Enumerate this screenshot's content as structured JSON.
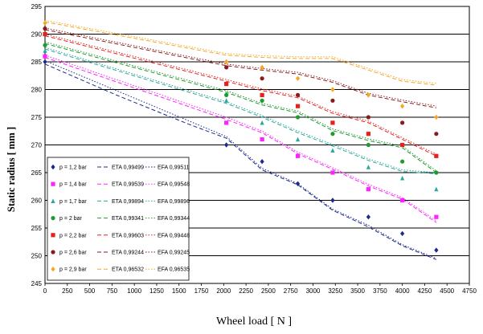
{
  "chart_data": {
    "type": "scatter",
    "xlabel": "Wheel load [ N ]",
    "ylabel": "Static radius [ mm ]",
    "xlim": [
      0,
      4750
    ],
    "ylim": [
      245,
      295
    ],
    "x_ticks": [
      0,
      250,
      500,
      750,
      1000,
      1250,
      1500,
      1750,
      2000,
      2250,
      2500,
      2750,
      3000,
      3250,
      3500,
      3750,
      4000,
      4250,
      4500,
      4750
    ],
    "y_ticks": [
      245,
      250,
      255,
      260,
      265,
      270,
      275,
      280,
      285,
      290,
      295
    ],
    "grid": "horizontal",
    "legend_position": "bottom-left",
    "series": [
      {
        "name": "p = 1,2 bar",
        "color": "#1c2a8c",
        "marker": "diamond",
        "points": [
          [
            0,
            285
          ],
          [
            2030,
            270
          ],
          [
            2430,
            267
          ],
          [
            2830,
            263
          ],
          [
            3220,
            260
          ],
          [
            3620,
            257
          ],
          [
            4000,
            254
          ],
          [
            4380,
            251
          ]
        ],
        "eta_label": "ETA 0,99499",
        "eta_curve": [
          [
            0,
            284.6
          ],
          [
            800,
            279
          ],
          [
            1600,
            273.8
          ],
          [
            2030,
            271.2
          ],
          [
            2430,
            265.5
          ],
          [
            2830,
            262.8
          ],
          [
            3220,
            258.2
          ],
          [
            3620,
            255.2
          ],
          [
            4000,
            251.8
          ],
          [
            4380,
            249.3
          ]
        ],
        "efa_label": "EFA 0,99511",
        "efa_curve": [
          [
            0,
            285.2
          ],
          [
            2030,
            271.5
          ],
          [
            2430,
            265.8
          ],
          [
            2830,
            263
          ],
          [
            3220,
            258.4
          ],
          [
            3620,
            255.5
          ],
          [
            4000,
            252
          ],
          [
            4380,
            249.5
          ]
        ]
      },
      {
        "name": "p = 1,4 bar",
        "color": "#ff22ff",
        "marker": "square",
        "points": [
          [
            0,
            286
          ],
          [
            2030,
            274
          ],
          [
            2430,
            271
          ],
          [
            2830,
            268
          ],
          [
            3220,
            265
          ],
          [
            3620,
            262
          ],
          [
            4000,
            260
          ],
          [
            4380,
            257
          ]
        ],
        "eta_label": "ETA 0,99539",
        "eta_curve": [
          [
            0,
            285.8
          ],
          [
            2030,
            274.6
          ],
          [
            2430,
            272.2
          ],
          [
            2830,
            268.4
          ],
          [
            3220,
            265.6
          ],
          [
            3620,
            262.6
          ],
          [
            4000,
            260.2
          ],
          [
            4380,
            256
          ]
        ],
        "efa_label": "EFA 0,99548",
        "efa_curve": [
          [
            0,
            286.2
          ],
          [
            2030,
            275
          ],
          [
            2430,
            272.5
          ],
          [
            2830,
            268.7
          ],
          [
            3220,
            265.9
          ],
          [
            3620,
            262.9
          ],
          [
            4000,
            260.5
          ],
          [
            4380,
            256.3
          ]
        ]
      },
      {
        "name": "p = 1,7 bar",
        "color": "#2aa89c",
        "marker": "triangle",
        "points": [
          [
            0,
            287
          ],
          [
            2030,
            278
          ],
          [
            2430,
            274
          ],
          [
            2830,
            271
          ],
          [
            3220,
            269
          ],
          [
            3620,
            266
          ],
          [
            4000,
            264
          ],
          [
            4380,
            262
          ]
        ],
        "eta_label": "ETA 0,99894",
        "eta_curve": [
          [
            0,
            287.3
          ],
          [
            2030,
            277.5
          ],
          [
            2430,
            275
          ],
          [
            2830,
            272.2
          ],
          [
            3220,
            269.8
          ],
          [
            3620,
            267.2
          ],
          [
            4000,
            265.2
          ],
          [
            4380,
            264.8
          ]
        ],
        "efa_label": "EFA 0,99896",
        "efa_curve": [
          [
            0,
            287.6
          ],
          [
            2030,
            277.8
          ],
          [
            2430,
            275.3
          ],
          [
            2830,
            272.5
          ],
          [
            3220,
            270.1
          ],
          [
            3620,
            267.5
          ],
          [
            4000,
            265.5
          ],
          [
            4380,
            265
          ]
        ]
      },
      {
        "name": "p = 2 bar",
        "color": "#1e9b2e",
        "marker": "circle",
        "points": [
          [
            0,
            288
          ],
          [
            2030,
            279
          ],
          [
            2430,
            278
          ],
          [
            2830,
            275
          ],
          [
            3220,
            272
          ],
          [
            3620,
            270
          ],
          [
            4000,
            267
          ],
          [
            4380,
            265
          ]
        ],
        "eta_label": "ETA 0,99341",
        "eta_curve": [
          [
            0,
            288.3
          ],
          [
            2030,
            279.5
          ],
          [
            2430,
            277.2
          ],
          [
            2830,
            275.8
          ],
          [
            3220,
            272.6
          ],
          [
            3620,
            270.8
          ],
          [
            4000,
            269.5
          ],
          [
            4380,
            265
          ]
        ],
        "efa_label": "EFA 0,99344",
        "efa_curve": [
          [
            0,
            288.6
          ],
          [
            2030,
            279.8
          ],
          [
            2430,
            277.5
          ],
          [
            2830,
            276.1
          ],
          [
            3220,
            272.9
          ],
          [
            3620,
            271.1
          ],
          [
            4000,
            269.8
          ],
          [
            4380,
            265.3
          ]
        ]
      },
      {
        "name": "p = 2,2 bar",
        "color": "#e8201c",
        "marker": "square",
        "points": [
          [
            0,
            290
          ],
          [
            2030,
            281
          ],
          [
            2430,
            279
          ],
          [
            2830,
            277
          ],
          [
            3220,
            274
          ],
          [
            3620,
            272
          ],
          [
            4000,
            270
          ],
          [
            4380,
            268
          ]
        ],
        "eta_label": "ETA 0,99603",
        "eta_curve": [
          [
            0,
            289.7
          ],
          [
            2030,
            281.5
          ],
          [
            2430,
            279.8
          ],
          [
            2830,
            278.5
          ],
          [
            3220,
            275.7
          ],
          [
            3620,
            274
          ],
          [
            4000,
            271
          ],
          [
            4380,
            268
          ]
        ],
        "efa_label": "EFA 0,99448",
        "efa_curve": [
          [
            0,
            290
          ],
          [
            2030,
            281.8
          ],
          [
            2430,
            280.1
          ],
          [
            2830,
            278.8
          ],
          [
            3220,
            276
          ],
          [
            3620,
            274.3
          ],
          [
            4000,
            271.3
          ],
          [
            4380,
            268.3
          ]
        ]
      },
      {
        "name": "p = 2,6 bar",
        "color": "#8b1a1a",
        "marker": "circle",
        "points": [
          [
            0,
            291
          ],
          [
            2030,
            284
          ],
          [
            2430,
            282
          ],
          [
            2830,
            279
          ],
          [
            3220,
            278
          ],
          [
            3620,
            275
          ],
          [
            4000,
            274
          ],
          [
            4380,
            272
          ]
        ],
        "eta_label": "ETA 0,99244",
        "eta_curve": [
          [
            0,
            290.8
          ],
          [
            2030,
            284.3
          ],
          [
            2430,
            283.5
          ],
          [
            2830,
            282.8
          ],
          [
            3220,
            281.3
          ],
          [
            3620,
            279
          ],
          [
            4000,
            277.8
          ],
          [
            4380,
            276.7
          ]
        ],
        "efa_label": "EFA 0,99245",
        "efa_curve": [
          [
            0,
            291.1
          ],
          [
            2030,
            284.6
          ],
          [
            2430,
            283.8
          ],
          [
            2830,
            283.1
          ],
          [
            3220,
            281.6
          ],
          [
            3620,
            279.3
          ],
          [
            4000,
            278.1
          ],
          [
            4380,
            277
          ]
        ]
      },
      {
        "name": "p = 2,9 bar",
        "color": "#f5a623",
        "marker": "diamond",
        "points": [
          [
            0,
            292
          ],
          [
            2030,
            285
          ],
          [
            2430,
            284
          ],
          [
            2830,
            282
          ],
          [
            3220,
            280
          ],
          [
            3620,
            279
          ],
          [
            4000,
            277
          ],
          [
            4380,
            275
          ]
        ],
        "eta_label": "ETA 0,96532",
        "eta_curve": [
          [
            0,
            292.2
          ],
          [
            2030,
            286.2
          ],
          [
            2430,
            285.8
          ],
          [
            2830,
            285.6
          ],
          [
            3220,
            285.6
          ],
          [
            3620,
            283.5
          ],
          [
            4000,
            281.5
          ],
          [
            4380,
            280.8
          ]
        ],
        "efa_label": "EFA 0,96535",
        "efa_curve": [
          [
            0,
            292.5
          ],
          [
            2030,
            286.5
          ],
          [
            2430,
            286.1
          ],
          [
            2830,
            285.9
          ],
          [
            3220,
            285.9
          ],
          [
            3620,
            283.8
          ],
          [
            4000,
            281.8
          ],
          [
            4380,
            281.1
          ]
        ]
      }
    ]
  }
}
